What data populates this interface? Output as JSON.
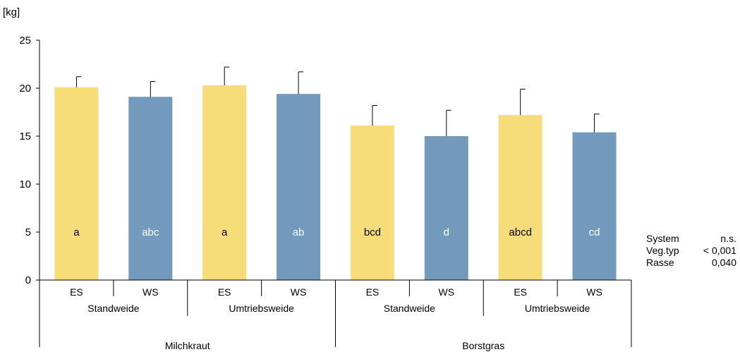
{
  "chart_data": {
    "type": "bar",
    "unit_label": "[kg]",
    "ylim": [
      0,
      25
    ],
    "yticks": [
      0,
      5,
      10,
      15,
      20,
      25
    ],
    "grid": false,
    "bars": [
      {
        "category": "ES",
        "value": 20.1,
        "error": 1.1,
        "letter": "a",
        "color": "#f7dd7a",
        "letter_color": "#000000"
      },
      {
        "category": "WS",
        "value": 19.1,
        "error": 1.6,
        "letter": "abc",
        "color": "#7399bd",
        "letter_color": "#ffffff"
      },
      {
        "category": "ES",
        "value": 20.3,
        "error": 1.9,
        "letter": "a",
        "color": "#f7dd7a",
        "letter_color": "#000000"
      },
      {
        "category": "WS",
        "value": 19.4,
        "error": 2.3,
        "letter": "ab",
        "color": "#7399bd",
        "letter_color": "#ffffff"
      },
      {
        "category": "ES",
        "value": 16.1,
        "error": 2.1,
        "letter": "bcd",
        "color": "#f7dd7a",
        "letter_color": "#000000"
      },
      {
        "category": "WS",
        "value": 15.0,
        "error": 2.7,
        "letter": "d",
        "color": "#7399bd",
        "letter_color": "#ffffff"
      },
      {
        "category": "ES",
        "value": 17.2,
        "error": 2.7,
        "letter": "abcd",
        "color": "#f7dd7a",
        "letter_color": "#000000"
      },
      {
        "category": "WS",
        "value": 15.4,
        "error": 1.9,
        "letter": "cd",
        "color": "#7399bd",
        "letter_color": "#ffffff"
      }
    ],
    "groups_level1": [
      "Standweide",
      "Umtriebsweide",
      "Standweide",
      "Umtriebsweide"
    ],
    "groups_level2": [
      "Milchkraut",
      "Borstgras"
    ],
    "stats": [
      {
        "name": "System",
        "value": "n.s."
      },
      {
        "name": "Veg.typ",
        "value": "< 0,001"
      },
      {
        "name": "Rasse",
        "value": "0,040"
      }
    ]
  }
}
